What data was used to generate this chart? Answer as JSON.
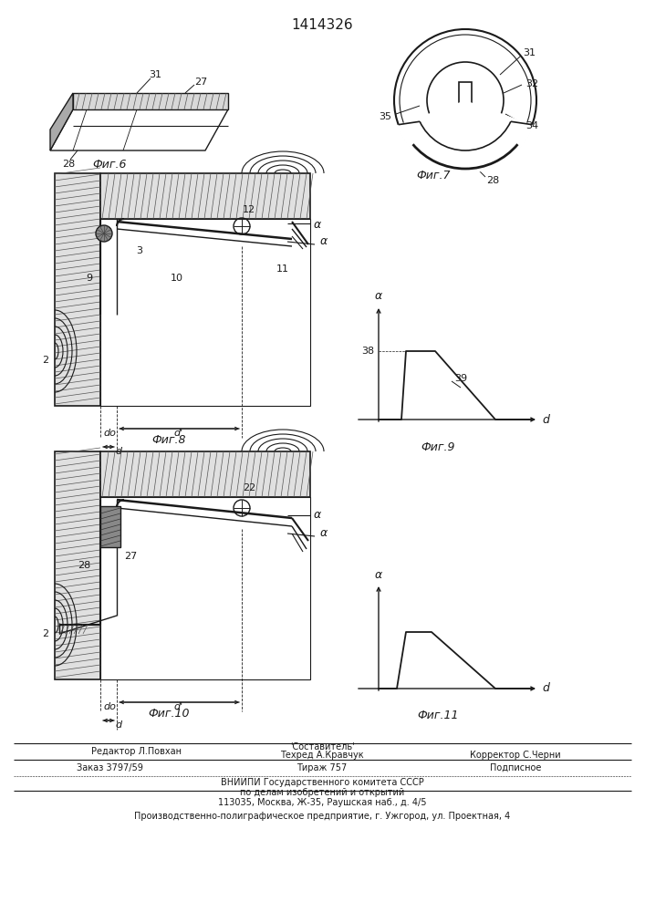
{
  "title": "1414326",
  "background": "#ffffff",
  "fig6_label": "Фиг.6",
  "fig7_label": "Фиг.7",
  "fig8_label": "Фиг.8",
  "fig9_label": "Фиг.9",
  "fig10_label": "Фиг.10",
  "fig11_label": "Фиг.11",
  "footer_editor": "Редактор Л.Повхан",
  "footer_comp": "'Составитель'",
  "footer_tech": "Техред А.Кравчук",
  "footer_corr": "Корректор С.Черни",
  "footer_order": "Заказ 3797/59",
  "footer_tirazh": "Тираж 757",
  "footer_podp": "Подписное",
  "footer_vniipи": "ВНИИПИ Государственного комитета СССР",
  "footer_po": "по делам изобретений и открытий",
  "footer_addr": "113035, Москва, Ж-35, Раушская наб., д. 4/5",
  "footer_prod": "Производственно-полиграфическое предприятие, г. Ужгород, ул. Проектная, 4",
  "line_color": "#1a1a1a",
  "hatch_color": "#555555"
}
